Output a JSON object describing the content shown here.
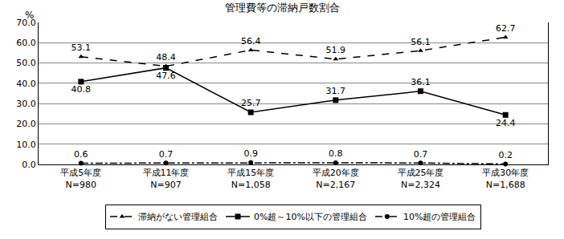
{
  "chart_data": {
    "type": "line",
    "title": "管理費等の滞納戸数割合",
    "ylabel": "%",
    "categories": [
      "平成5年度\nN=980",
      "平成11年度\nN=907",
      "平成15年度\nN=1,058",
      "平成20年度\nN=2,167",
      "平成25年度\nN=2,324",
      "平成30年度\nN=1,688"
    ],
    "series": [
      {
        "name": "滞納がない管理組合",
        "color": "#000000",
        "line_style": "dash",
        "marker": "triangle-up",
        "values": [
          53.1,
          48.4,
          56.4,
          51.9,
          56.1,
          62.7
        ]
      },
      {
        "name": "0%超～10%以下の管理組合",
        "color": "#000000",
        "line_style": "solid",
        "marker": "square",
        "values": [
          40.8,
          47.6,
          25.7,
          31.7,
          36.1,
          24.4
        ]
      },
      {
        "name": "10%超の管理組合",
        "color": "#000000",
        "line_style": "dashdot",
        "marker": "circle",
        "values": [
          0.6,
          0.7,
          0.9,
          0.8,
          0.7,
          0.2
        ]
      }
    ],
    "ylim": [
      0,
      70
    ],
    "yticks": [
      {
        "value": 0,
        "label": "0.0"
      },
      {
        "value": 10,
        "label": "10.0"
      },
      {
        "value": 20,
        "label": "20.0"
      },
      {
        "value": 30,
        "label": "30.0"
      },
      {
        "value": 40,
        "label": "40.0"
      },
      {
        "value": 50,
        "label": "50.0"
      },
      {
        "value": 60,
        "label": "60.0"
      },
      {
        "value": 70,
        "label": "70.0"
      }
    ],
    "grid": true,
    "legend": "bottom",
    "data_labels": true
  }
}
